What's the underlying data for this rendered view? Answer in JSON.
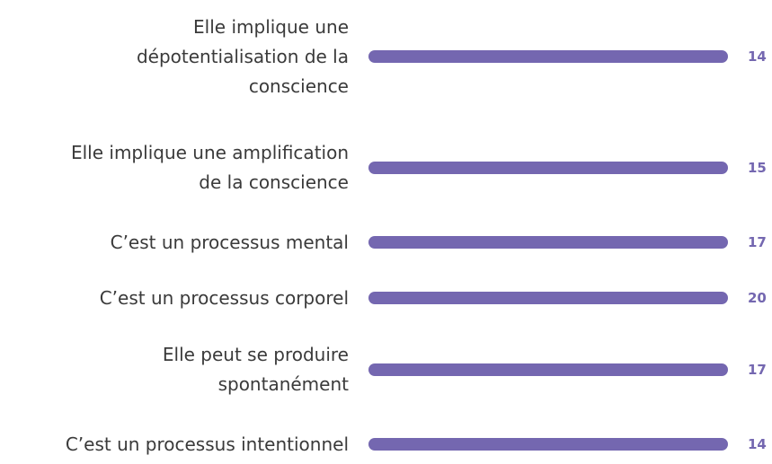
{
  "items": [
    {
      "label": [
        "Elle implique une",
        "dépotentialisation de la",
        "conscience"
      ],
      "value": 14
    },
    {
      "label": [
        "Elle implique une amplification",
        "de la conscience"
      ],
      "value": 15
    },
    {
      "label": [
        "C’est un processus mental"
      ],
      "value": 17
    },
    {
      "label": [
        "C’est un processus corporel"
      ],
      "value": 20
    },
    {
      "label": [
        "Elle peut se produire",
        "spontanément"
      ],
      "value": 17
    },
    {
      "label": [
        "C’est un processus intentionnel"
      ],
      "value": 14
    }
  ]
}
